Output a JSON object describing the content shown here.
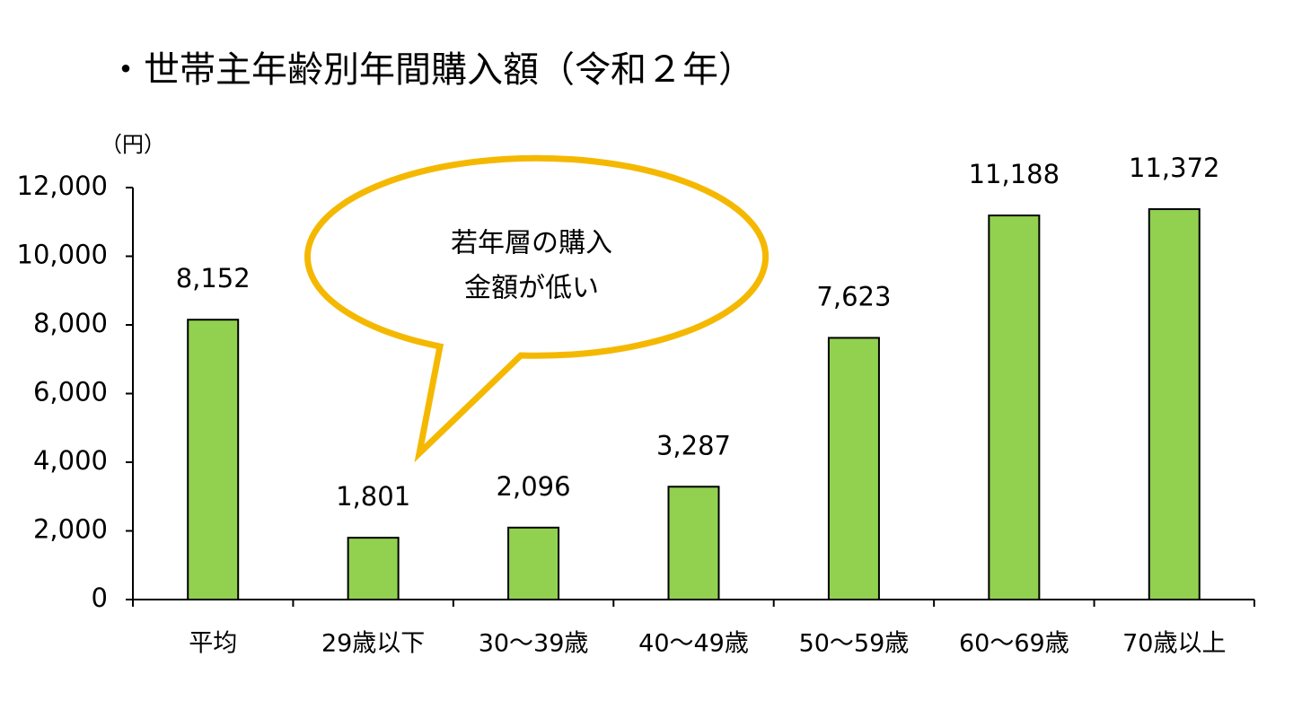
{
  "chart_data": {
    "type": "bar",
    "title": "・世帯主年齢別年間購入額（令和２年）",
    "y_unit": "（円）",
    "annotation": [
      "若年層の購入",
      "金額が低い"
    ],
    "categories": [
      "平均",
      "29歳以下",
      "30～39歳",
      "40～49歳",
      "50～59歳",
      "60～69歳",
      "70歳以上"
    ],
    "values": [
      8152,
      1801,
      2096,
      3287,
      7623,
      11188,
      11372
    ],
    "value_labels": [
      "8,152",
      "1,801",
      "2,096",
      "3,287",
      "7,623",
      "11,188",
      "11,372"
    ],
    "color": "#92d050",
    "ylim": [
      0,
      12000
    ],
    "yticks": [
      0,
      {
        "value": 2000,
        "label": "2,000"
      },
      {
        "value": 4000,
        "label": "4,000"
      },
      {
        "value": 6000,
        "label": "6,000"
      },
      {
        "value": 8000,
        "label": "8,000"
      },
      {
        "value": 10000,
        "label": "10,000"
      },
      {
        "value": 12000,
        "label": "12,000"
      }
    ],
    "grid": false
  }
}
